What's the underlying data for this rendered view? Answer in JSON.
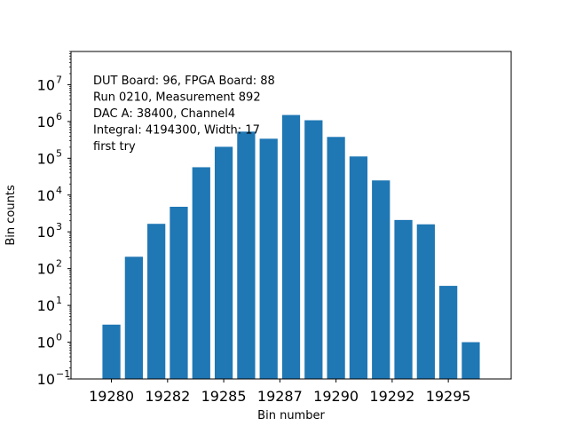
{
  "chart_data": {
    "type": "bar",
    "xlabel": "Bin number",
    "ylabel": "Bin counts",
    "yscale": "log",
    "ylim": [
      0.1,
      80000000
    ],
    "xlim": [
      19278.2,
      19297.8
    ],
    "x": [
      19280,
      19281,
      19282,
      19283,
      19284,
      19285,
      19286,
      19287,
      19288,
      19289,
      19290,
      19291,
      19292,
      19293,
      19294,
      19295,
      19296
    ],
    "values": [
      3,
      210,
      1650,
      4800,
      57000,
      205000,
      530000,
      340000,
      1500000,
      1080000,
      380000,
      112000,
      25000,
      2100,
      1600,
      34,
      1
    ],
    "x_tick_labels": [
      {
        "x": 19280,
        "label": "19280"
      },
      {
        "x": 19282.5,
        "label": "19282"
      },
      {
        "x": 19285,
        "label": "19285"
      },
      {
        "x": 19287.5,
        "label": "19287"
      },
      {
        "x": 19290,
        "label": "19290"
      },
      {
        "x": 19292.5,
        "label": "19292"
      },
      {
        "x": 19295,
        "label": "19295"
      }
    ],
    "y_ticks": [
      {
        "exp": -1,
        "base": "10",
        "sup": "−1"
      },
      {
        "exp": 0,
        "base": "10",
        "sup": "0"
      },
      {
        "exp": 1,
        "base": "10",
        "sup": "1"
      },
      {
        "exp": 2,
        "base": "10",
        "sup": "2"
      },
      {
        "exp": 3,
        "base": "10",
        "sup": "3"
      },
      {
        "exp": 4,
        "base": "10",
        "sup": "4"
      },
      {
        "exp": 5,
        "base": "10",
        "sup": "5"
      },
      {
        "exp": 6,
        "base": "10",
        "sup": "6"
      },
      {
        "exp": 7,
        "base": "10",
        "sup": "7"
      }
    ],
    "annotation_lines": [
      "DUT Board: 96, FPGA Board: 88",
      "Run 0210, Measurement 892",
      "DAC A: 38400, Channel4",
      "Integral: 4194300, Width: 17",
      "first try"
    ],
    "bar_color": "#1f77b4",
    "grid": false,
    "legend": "none"
  }
}
